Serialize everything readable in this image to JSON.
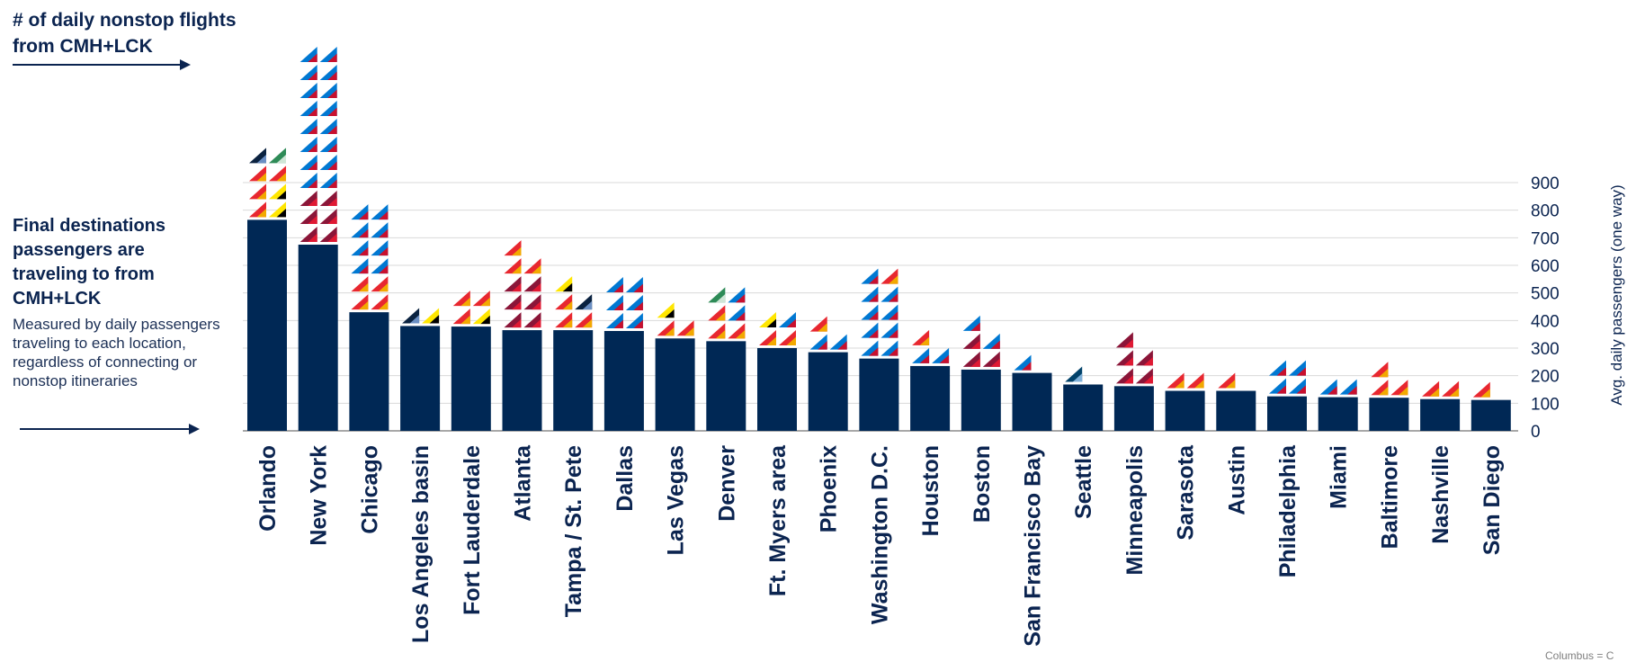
{
  "nonstop_label": "# of daily nonstop flights from CMH+LCK",
  "final_dest_title": "Final destinations passengers are traveling to from CMH+LCK",
  "final_dest_sub": "Measured by daily passengers traveling to each location, regardless of connecting or nonstop itineraries",
  "footnote": "Columbus = C",
  "colors": {
    "bar": "#002855",
    "grid": "#d9d9d9",
    "southwest": "#f2a900",
    "southwest_red": "#e8272f",
    "american": "#0078d2",
    "delta": "#8b1538",
    "spirit": "#ffe600",
    "united": "#0a2240",
    "alaska": "#01426a"
  },
  "chart_data": {
    "type": "bar",
    "title": "",
    "xlabel": "",
    "ylabel": "Avg. daily passengers (one way)",
    "ylim": [
      0,
      900
    ],
    "yticks": [
      0,
      100,
      200,
      300,
      400,
      500,
      600,
      700,
      800,
      900
    ],
    "grid": true,
    "categories": [
      "Orlando",
      "New York",
      "Chicago",
      "Los Angeles basin",
      "Fort Lauderdale",
      "Atlanta",
      "Tampa / St. Pete",
      "Dallas",
      "Las Vegas",
      "Denver",
      "Ft. Myers area",
      "Phoenix",
      "Washington D.C.",
      "Houston",
      "Boston",
      "San Francisco Bay",
      "Seattle",
      "Minneapolis",
      "Sarasota",
      "Austin",
      "Philadelphia",
      "Miami",
      "Baltimore",
      "Nashville",
      "San Diego"
    ],
    "values": [
      765,
      675,
      430,
      380,
      378,
      365,
      365,
      362,
      335,
      325,
      300,
      285,
      262,
      235,
      222,
      210,
      168,
      162,
      145,
      145,
      125,
      122,
      120,
      115,
      112
    ],
    "nonstop_flights": [
      [
        "southwest",
        "spirit",
        "southwest",
        "spirit",
        "southwest",
        "southwest",
        "united",
        "frontier"
      ],
      [
        "delta",
        "delta",
        "delta",
        "delta",
        "delta",
        "delta",
        "american",
        "american",
        "american",
        "american",
        "american",
        "american",
        "american",
        "american",
        "american",
        "american",
        "american",
        "american",
        "american",
        "american",
        "american",
        "american"
      ],
      [
        "southwest",
        "southwest",
        "southwest",
        "southwest",
        "american",
        "american",
        "american",
        "american",
        "american",
        "american",
        "american",
        "american"
      ],
      [
        "united",
        "spirit"
      ],
      [
        "southwest",
        "spirit",
        "southwest",
        "southwest"
      ],
      [
        "delta",
        "delta",
        "delta",
        "delta",
        "delta",
        "delta",
        "southwest",
        "southwest",
        "southwest"
      ],
      [
        "southwest",
        "southwest",
        "southwest",
        "united",
        "spirit"
      ],
      [
        "american",
        "american",
        "american",
        "american",
        "american",
        "american"
      ],
      [
        "southwest",
        "southwest",
        "spirit"
      ],
      [
        "southwest",
        "southwest",
        "southwest",
        "american",
        "frontier",
        "american"
      ],
      [
        "southwest",
        "southwest",
        "spirit",
        "american"
      ],
      [
        "american",
        "american",
        "southwest"
      ],
      [
        "american",
        "american",
        "american",
        "american",
        "american",
        "american",
        "american",
        "american",
        "american",
        "southwest"
      ],
      [
        "american",
        "american",
        "southwest"
      ],
      [
        "delta",
        "delta",
        "delta",
        "american",
        "american"
      ],
      [
        "american"
      ],
      [
        "alaska"
      ],
      [
        "delta",
        "delta",
        "delta",
        "delta",
        "delta"
      ],
      [
        "southwest",
        "southwest"
      ],
      [
        "southwest"
      ],
      [
        "american",
        "american",
        "american",
        "american"
      ],
      [
        "american",
        "american"
      ],
      [
        "southwest",
        "southwest",
        "southwest"
      ],
      [
        "southwest",
        "southwest"
      ],
      [
        "southwest"
      ]
    ]
  }
}
